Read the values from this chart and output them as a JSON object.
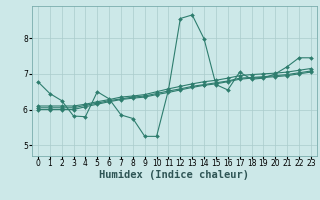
{
  "xlabel": "Humidex (Indice chaleur)",
  "ylabel": "",
  "xlim": [
    -0.5,
    23.5
  ],
  "ylim": [
    4.7,
    8.9
  ],
  "bg_color": "#cce8e8",
  "line_color": "#2e7d6e",
  "grid_color": "#aacccc",
  "series": [
    {
      "x": [
        0,
        1,
        2,
        3,
        4,
        5,
        6,
        7,
        8,
        9,
        10,
        11,
        12,
        13,
        14,
        15,
        16,
        17,
        18,
        19,
        20,
        21,
        22,
        23
      ],
      "y": [
        6.78,
        6.45,
        6.25,
        5.82,
        5.8,
        6.5,
        6.3,
        5.85,
        5.75,
        5.25,
        5.25,
        6.55,
        8.55,
        8.65,
        7.98,
        6.7,
        6.55,
        7.05,
        6.85,
        6.88,
        7.0,
        7.2,
        7.45,
        7.45
      ]
    },
    {
      "x": [
        0,
        1,
        2,
        3,
        4,
        5,
        6,
        7,
        8,
        9,
        10,
        11,
        12,
        13,
        14,
        15,
        16,
        17,
        18,
        19,
        20,
        21,
        22,
        23
      ],
      "y": [
        6.1,
        6.1,
        6.1,
        6.1,
        6.15,
        6.22,
        6.28,
        6.35,
        6.38,
        6.42,
        6.5,
        6.58,
        6.65,
        6.72,
        6.78,
        6.82,
        6.88,
        6.95,
        6.98,
        7.0,
        7.02,
        7.05,
        7.1,
        7.15
      ]
    },
    {
      "x": [
        0,
        1,
        2,
        3,
        4,
        5,
        6,
        7,
        8,
        9,
        10,
        11,
        12,
        13,
        14,
        15,
        16,
        17,
        18,
        19,
        20,
        21,
        22,
        23
      ],
      "y": [
        6.05,
        6.05,
        6.05,
        6.05,
        6.12,
        6.18,
        6.25,
        6.3,
        6.35,
        6.38,
        6.45,
        6.52,
        6.58,
        6.65,
        6.7,
        6.75,
        6.8,
        6.88,
        6.9,
        6.92,
        6.95,
        6.98,
        7.03,
        7.08
      ]
    },
    {
      "x": [
        0,
        1,
        2,
        3,
        4,
        5,
        6,
        7,
        8,
        9,
        10,
        11,
        12,
        13,
        14,
        15,
        16,
        17,
        18,
        19,
        20,
        21,
        22,
        23
      ],
      "y": [
        6.0,
        6.0,
        6.0,
        6.0,
        6.08,
        6.15,
        6.22,
        6.28,
        6.32,
        6.35,
        6.42,
        6.48,
        6.55,
        6.62,
        6.68,
        6.72,
        6.78,
        6.85,
        6.88,
        6.9,
        6.92,
        6.95,
        7.0,
        7.05
      ]
    }
  ],
  "xticks": [
    0,
    1,
    2,
    3,
    4,
    5,
    6,
    7,
    8,
    9,
    10,
    11,
    12,
    13,
    14,
    15,
    16,
    17,
    18,
    19,
    20,
    21,
    22,
    23
  ],
  "yticks": [
    5,
    6,
    7,
    8
  ],
  "tick_fontsize": 5.5,
  "xlabel_fontsize": 7.5
}
